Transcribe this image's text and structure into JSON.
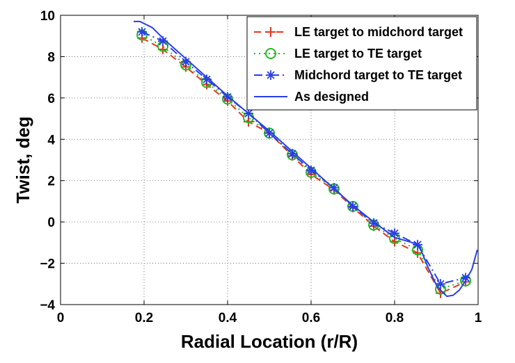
{
  "chart_data": {
    "type": "line",
    "title": "",
    "xlabel": "Radial Location (r/R)",
    "ylabel": "Twist, deg",
    "xlim": [
      0,
      1
    ],
    "ylim": [
      -4,
      10
    ],
    "xticks": [
      0,
      0.2,
      0.4,
      0.6,
      0.8,
      1
    ],
    "xtick_labels": [
      "0",
      "0.2",
      "0.4",
      "0.6",
      "0.8",
      "1"
    ],
    "yticks": [
      -4,
      -2,
      0,
      2,
      4,
      6,
      8,
      10
    ],
    "ytick_labels": [
      "−4",
      "−2",
      "0",
      "2",
      "4",
      "6",
      "8",
      "10"
    ],
    "grid": true,
    "legend_position": "top-right",
    "series": [
      {
        "name": "LE target to midchord target",
        "color": "#e8341c",
        "line_style": "dashed",
        "marker": "plus",
        "x": [
          0.195,
          0.245,
          0.3,
          0.35,
          0.4,
          0.45,
          0.5,
          0.555,
          0.6,
          0.655,
          0.7,
          0.75,
          0.8,
          0.855,
          0.91,
          0.97
        ],
        "y": [
          8.9,
          8.35,
          7.5,
          6.65,
          5.85,
          4.85,
          4.3,
          3.2,
          2.3,
          1.55,
          0.7,
          -0.2,
          -0.95,
          -1.5,
          -3.45,
          -2.9
        ]
      },
      {
        "name": "LE target to TE target",
        "color": "#22bb22",
        "line_style": "dotted",
        "marker": "circle",
        "x": [
          0.195,
          0.245,
          0.3,
          0.35,
          0.4,
          0.45,
          0.5,
          0.555,
          0.6,
          0.655,
          0.7,
          0.75,
          0.8,
          0.855,
          0.91,
          0.97
        ],
        "y": [
          9.05,
          8.5,
          7.6,
          6.75,
          5.95,
          5.05,
          4.3,
          3.25,
          2.4,
          1.6,
          0.75,
          -0.15,
          -0.8,
          -1.35,
          -3.25,
          -2.85
        ]
      },
      {
        "name": "Midchord target to TE target",
        "color": "#2a3ee8",
        "line_style": "dashdot",
        "marker": "asterisk",
        "x": [
          0.195,
          0.245,
          0.3,
          0.35,
          0.4,
          0.45,
          0.5,
          0.555,
          0.6,
          0.655,
          0.7,
          0.75,
          0.8,
          0.855,
          0.91,
          0.97
        ],
        "y": [
          9.2,
          8.75,
          7.75,
          6.9,
          6.05,
          5.25,
          4.3,
          3.3,
          2.5,
          1.65,
          0.75,
          -0.05,
          -0.55,
          -1.1,
          -3.0,
          -2.7
        ]
      },
      {
        "name": "As designed",
        "color": "#2a3ee8",
        "line_style": "solid",
        "marker": "none",
        "x": [
          0.175,
          0.19,
          0.22,
          0.25,
          0.3,
          0.35,
          0.4,
          0.45,
          0.5,
          0.55,
          0.6,
          0.65,
          0.7,
          0.75,
          0.8,
          0.85,
          0.86,
          0.88,
          0.9,
          0.91,
          0.925,
          0.94,
          0.955,
          0.97,
          0.985,
          0.998
        ],
        "y": [
          9.7,
          9.7,
          9.4,
          8.8,
          7.9,
          7.0,
          6.1,
          5.25,
          4.4,
          3.5,
          2.6,
          1.7,
          0.8,
          0.0,
          -0.75,
          -1.05,
          -1.2,
          -2.2,
          -3.05,
          -3.3,
          -3.6,
          -3.55,
          -3.3,
          -2.85,
          -2.3,
          -1.35
        ]
      }
    ]
  }
}
